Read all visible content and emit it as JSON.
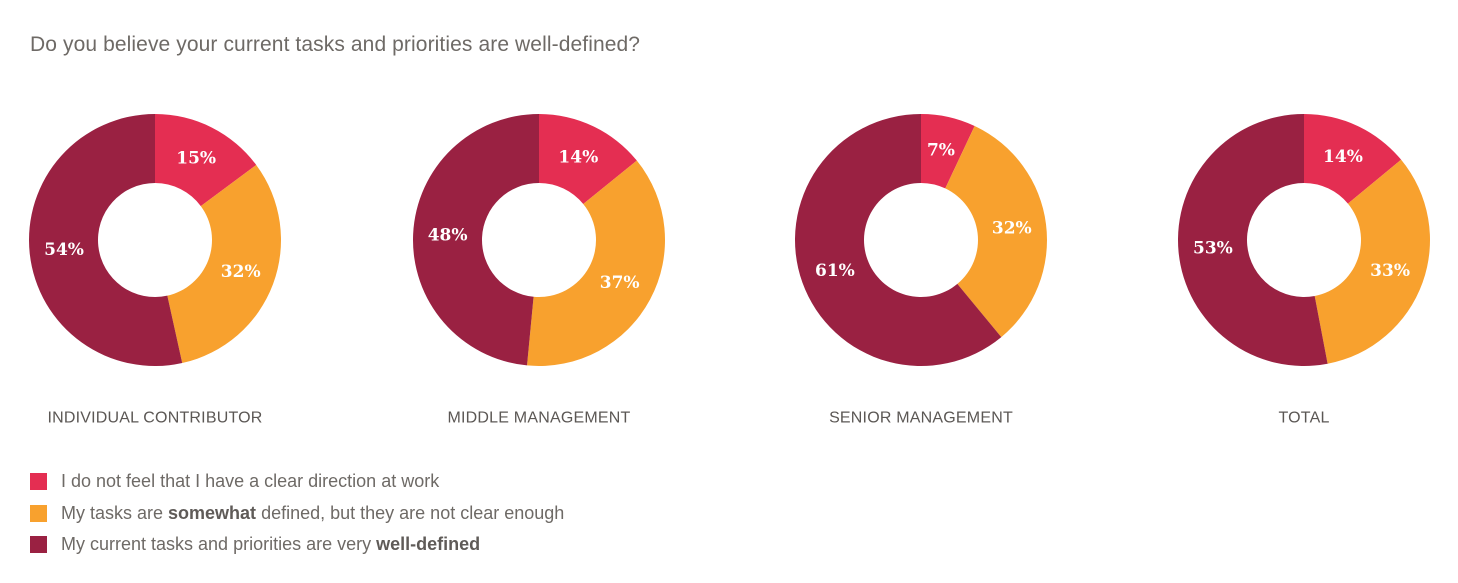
{
  "title": "Do you believe your current tasks and priorities are well-defined?",
  "colors": {
    "unclear": "#e42e52",
    "somewhat": "#f8a12e",
    "well_defined": "#9a2142"
  },
  "legend": {
    "items": [
      {
        "key": "unclear",
        "parts": [
          {
            "text": "I do not feel that I have a clear direction at work",
            "bold": false
          }
        ]
      },
      {
        "key": "somewhat",
        "parts": [
          {
            "text": "My tasks are ",
            "bold": false
          },
          {
            "text": "somewhat",
            "bold": true
          },
          {
            "text": " defined, but they are not clear enough",
            "bold": false
          }
        ]
      },
      {
        "key": "well_defined",
        "parts": [
          {
            "text": "My current tasks and priorities are very ",
            "bold": false
          },
          {
            "text": "well-defined",
            "bold": true
          }
        ]
      }
    ]
  },
  "chart_data": [
    {
      "type": "pie",
      "title": "INDIVIDUAL CONTRIBUTOR",
      "slices": [
        {
          "key": "unclear",
          "value": 15,
          "label": "15%"
        },
        {
          "key": "somewhat",
          "value": 32,
          "label": "32%"
        },
        {
          "key": "well_defined",
          "value": 54,
          "label": "54%"
        }
      ]
    },
    {
      "type": "pie",
      "title": "MIDDLE MANAGEMENT",
      "slices": [
        {
          "key": "unclear",
          "value": 14,
          "label": "14%"
        },
        {
          "key": "somewhat",
          "value": 37,
          "label": "37%"
        },
        {
          "key": "well_defined",
          "value": 48,
          "label": "48%"
        }
      ]
    },
    {
      "type": "pie",
      "title": "SENIOR MANAGEMENT",
      "slices": [
        {
          "key": "unclear",
          "value": 7,
          "label": "7%"
        },
        {
          "key": "somewhat",
          "value": 32,
          "label": "32%"
        },
        {
          "key": "well_defined",
          "value": 61,
          "label": "61%"
        }
      ]
    },
    {
      "type": "pie",
      "title": "TOTAL",
      "slices": [
        {
          "key": "unclear",
          "value": 14,
          "label": "14%"
        },
        {
          "key": "somewhat",
          "value": 33,
          "label": "33%"
        },
        {
          "key": "well_defined",
          "value": 53,
          "label": "53%"
        }
      ]
    }
  ]
}
